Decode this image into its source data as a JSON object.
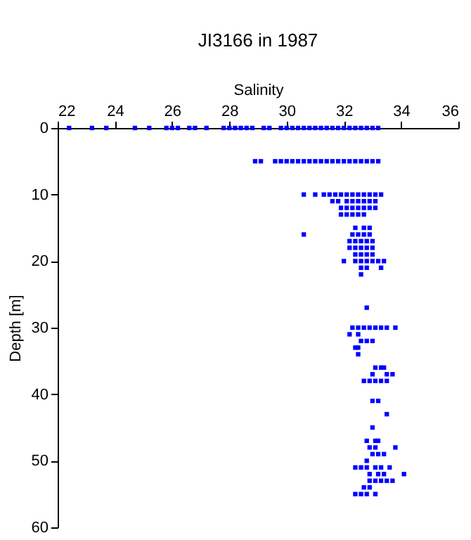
{
  "chart_data": {
    "type": "scatter",
    "title": "JI3166 in 1987",
    "xlabel": "Salinity",
    "ylabel": "Depth [m]",
    "xlim": [
      22,
      36
    ],
    "xticks": [
      22,
      24,
      26,
      28,
      30,
      32,
      34,
      36
    ],
    "ylim": [
      60,
      0
    ],
    "yticks": [
      0,
      10,
      20,
      30,
      40,
      50,
      60
    ],
    "grid": false,
    "marker": "square",
    "series": [
      {
        "color": "#0000ff",
        "x": [
          22.4,
          23.2,
          23.7,
          24.7,
          25.2,
          25.8,
          26.0,
          26.2,
          26.6,
          26.8,
          27.2,
          27.8,
          28.0,
          28.2,
          28.4,
          28.6,
          28.8,
          29.2,
          29.4,
          29.8,
          30.0,
          30.2,
          30.4,
          30.6,
          30.8,
          31.0,
          31.2,
          31.4,
          31.6,
          31.8,
          32.0,
          32.2,
          32.4,
          32.6,
          32.8,
          33.0,
          33.2,
          28.9,
          29.1,
          29.6,
          29.8,
          30.0,
          30.2,
          30.4,
          30.6,
          30.8,
          31.0,
          31.2,
          31.4,
          31.6,
          31.8,
          32.0,
          32.2,
          32.4,
          32.6,
          32.8,
          33.0,
          33.2,
          30.6,
          31.0,
          31.3,
          31.5,
          31.7,
          31.9,
          32.1,
          32.3,
          32.5,
          32.7,
          32.9,
          33.1,
          33.3,
          31.6,
          31.8,
          32.1,
          32.3,
          32.5,
          32.7,
          32.9,
          33.1,
          31.9,
          32.1,
          32.3,
          32.5,
          32.7,
          32.9,
          33.1,
          31.9,
          32.1,
          32.3,
          32.5,
          32.7,
          32.4,
          32.7,
          32.9,
          30.6,
          32.3,
          32.5,
          32.7,
          32.9,
          32.2,
          32.4,
          32.6,
          32.8,
          33.0,
          32.2,
          32.4,
          32.6,
          32.8,
          33.0,
          32.4,
          32.6,
          32.8,
          33.0,
          32.0,
          32.4,
          32.6,
          32.8,
          33.0,
          33.2,
          33.4,
          32.6,
          32.8,
          33.3,
          32.6,
          32.8,
          32.3,
          32.5,
          32.7,
          32.9,
          33.1,
          33.3,
          33.5,
          33.8,
          32.2,
          32.5,
          32.6,
          32.8,
          33.0,
          32.4,
          32.5,
          32.5,
          33.1,
          33.3,
          33.4,
          33.0,
          33.5,
          33.7,
          32.7,
          32.9,
          33.1,
          33.3,
          33.5,
          33.0,
          33.2,
          33.5,
          33.0,
          32.8,
          33.1,
          33.2,
          32.9,
          33.1,
          33.8,
          33.0,
          33.2,
          33.4,
          32.8,
          32.4,
          32.6,
          32.8,
          33.1,
          33.3,
          33.6,
          32.9,
          33.2,
          33.4,
          34.1,
          32.9,
          33.1,
          33.3,
          33.5,
          33.7,
          32.7,
          32.9,
          32.4,
          32.6,
          32.8,
          33.1
        ],
        "values": [
          0,
          0,
          0,
          0,
          0,
          0,
          0,
          0,
          0,
          0,
          0,
          0,
          0,
          0,
          0,
          0,
          0,
          0,
          0,
          0,
          0,
          0,
          0,
          0,
          0,
          0,
          0,
          0,
          0,
          0,
          0,
          0,
          0,
          0,
          0,
          0,
          0,
          5,
          5,
          5,
          5,
          5,
          5,
          5,
          5,
          5,
          5,
          5,
          5,
          5,
          5,
          5,
          5,
          5,
          5,
          5,
          5,
          5,
          10,
          10,
          10,
          10,
          10,
          10,
          10,
          10,
          10,
          10,
          10,
          10,
          10,
          11,
          11,
          11,
          11,
          11,
          11,
          11,
          11,
          12,
          12,
          12,
          12,
          12,
          12,
          12,
          13,
          13,
          13,
          13,
          13,
          15,
          15,
          15,
          16,
          16,
          16,
          16,
          16,
          17,
          17,
          17,
          17,
          17,
          18,
          18,
          18,
          18,
          18,
          19,
          19,
          19,
          19,
          20,
          20,
          20,
          20,
          20,
          20,
          20,
          21,
          21,
          21,
          22,
          27,
          30,
          30,
          30,
          30,
          30,
          30,
          30,
          30,
          31,
          31,
          32,
          32,
          32,
          33,
          33,
          34,
          36,
          36,
          36,
          37,
          37,
          37,
          38,
          38,
          38,
          38,
          38,
          41,
          41,
          43,
          45,
          47,
          47,
          47,
          48,
          48,
          48,
          49,
          49,
          49,
          50,
          51,
          51,
          51,
          51,
          51,
          51,
          52,
          52,
          52,
          52,
          53,
          53,
          53,
          53,
          53,
          54,
          54,
          55,
          55,
          55,
          55
        ]
      }
    ]
  }
}
